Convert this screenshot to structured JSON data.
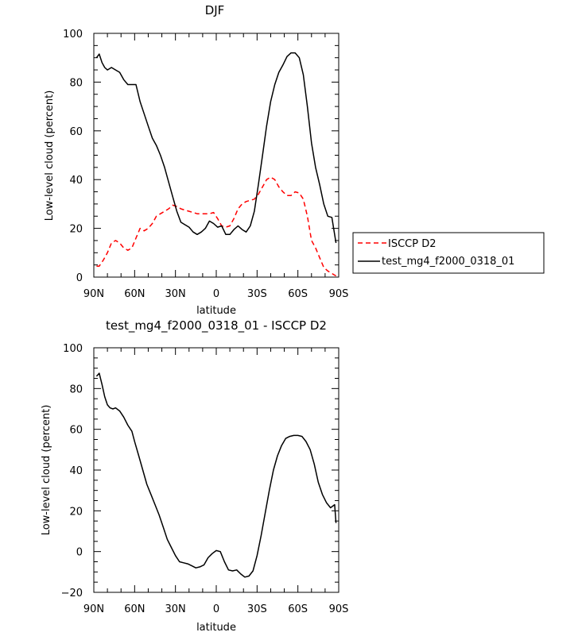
{
  "chart_data": [
    {
      "type": "line",
      "title": "DJF",
      "xlabel": "latitude",
      "ylabel": "Low-level cloud (percent)",
      "xlim": [
        90,
        -90
      ],
      "ylim": [
        0,
        100
      ],
      "xticks": [
        90,
        60,
        30,
        0,
        -30,
        -60,
        -90
      ],
      "xtick_labels": [
        "90N",
        "60N",
        "30N",
        "0",
        "30S",
        "60S",
        "90S"
      ],
      "yticks": [
        0,
        20,
        40,
        60,
        80,
        100
      ],
      "ytick_labels": [
        "0",
        "20",
        "40",
        "60",
        "80",
        "100"
      ],
      "grid": false,
      "legend": "right",
      "series": [
        {
          "name": "ISCCP D2",
          "color": "#ff0000",
          "dash": "dashed",
          "x": [
            88,
            86,
            83,
            80,
            77,
            74,
            71,
            68,
            65,
            62,
            59,
            56,
            53,
            50,
            47,
            44,
            41,
            38,
            35,
            32,
            29,
            26,
            23,
            20,
            17,
            14,
            11,
            8,
            5,
            2,
            -1,
            -4,
            -7,
            -10,
            -13,
            -16,
            -19,
            -22,
            -25,
            -28,
            -31,
            -34,
            -37,
            -40,
            -43,
            -46,
            -49,
            -52,
            -55,
            -58,
            -61,
            -64,
            -67,
            -70,
            -73,
            -76,
            -79,
            -82,
            -85,
            -88
          ],
          "y": [
            4.5,
            4.5,
            7,
            10,
            14,
            15,
            14,
            12,
            11,
            12,
            16,
            20,
            19,
            20,
            22,
            25,
            26,
            27,
            28,
            29.5,
            29,
            28,
            27.5,
            27,
            26.5,
            26,
            26,
            26,
            26,
            26.5,
            24,
            21,
            20.5,
            21,
            24,
            28,
            30,
            31,
            31.5,
            32,
            34,
            37,
            40,
            41,
            40,
            37,
            35,
            33.5,
            33.5,
            35,
            34.5,
            32,
            25,
            15,
            12,
            8,
            4,
            2.5,
            1.5,
            0.5
          ]
        },
        {
          "name": "test_mg4_f2000_0318_01",
          "color": "#000000",
          "dash": "solid",
          "x": [
            88,
            86,
            84,
            82,
            80,
            77,
            74,
            71,
            68,
            65,
            62,
            59,
            56,
            53,
            50,
            47,
            44,
            41,
            38,
            35,
            32,
            29,
            26,
            23,
            20,
            17,
            14,
            11,
            8,
            5,
            2,
            -1,
            -4,
            -7,
            -10,
            -13,
            -16,
            -19,
            -22,
            -25,
            -28,
            -31,
            -34,
            -37,
            -40,
            -43,
            -46,
            -49,
            -52,
            -55,
            -58,
            -61,
            -64,
            -67,
            -70,
            -73,
            -76,
            -79,
            -82,
            -85,
            -88
          ],
          "y": [
            90,
            91.5,
            88,
            86,
            85,
            86,
            85,
            84,
            81,
            79,
            79,
            79,
            72,
            67,
            62,
            57,
            54,
            50,
            45,
            39,
            33,
            27,
            22.5,
            21.5,
            20.5,
            18.5,
            17.5,
            18.5,
            20,
            23,
            22,
            20.5,
            21,
            17.5,
            17.5,
            19.5,
            21,
            19.5,
            18.5,
            21,
            27,
            38,
            50,
            62,
            72,
            79,
            84,
            87,
            90.5,
            92,
            92,
            90,
            83,
            70,
            55,
            45,
            38,
            30,
            25,
            24.5,
            14
          ]
        }
      ]
    },
    {
      "type": "line",
      "title": "test_mg4_f2000_0318_01 - ISCCP D2",
      "xlabel": "latitude",
      "ylabel": "Low-level cloud (percent)",
      "xlim": [
        90,
        -90
      ],
      "ylim": [
        -20,
        100
      ],
      "xticks": [
        90,
        60,
        30,
        0,
        -30,
        -60,
        -90
      ],
      "xtick_labels": [
        "90N",
        "60N",
        "30N",
        "0",
        "30S",
        "60S",
        "90S"
      ],
      "yticks": [
        -20,
        0,
        20,
        40,
        60,
        80,
        100
      ],
      "ytick_labels": [
        "-20",
        "0",
        "20",
        "40",
        "60",
        "80",
        "100"
      ],
      "grid": false,
      "series": [
        {
          "color": "#000000",
          "dash": "solid",
          "x": [
            88,
            86,
            84,
            82,
            80,
            78,
            76,
            74,
            71,
            68,
            65,
            62,
            60,
            57,
            54,
            51,
            48,
            45,
            42,
            39,
            36,
            33,
            30,
            27,
            24,
            21,
            18,
            15,
            12,
            9,
            6,
            3,
            0,
            -3,
            -6,
            -9,
            -12,
            -15,
            -18,
            -21,
            -24,
            -27,
            -30,
            -33,
            -36,
            -39,
            -42,
            -45,
            -48,
            -51,
            -54,
            -57,
            -60,
            -63,
            -66,
            -69,
            -72,
            -75,
            -78,
            -81,
            -84,
            -87,
            -88
          ],
          "y": [
            86,
            87.5,
            82,
            76,
            72,
            70.5,
            70,
            70.5,
            69,
            66,
            62,
            59,
            54,
            47,
            40,
            33,
            28,
            23,
            18,
            12,
            6,
            2,
            -2,
            -5,
            -5.5,
            -6,
            -7,
            -8,
            -7.5,
            -6.5,
            -3,
            -1,
            0.5,
            0,
            -5,
            -9,
            -9.5,
            -9,
            -11,
            -12.5,
            -12,
            -9.5,
            -2,
            8,
            19,
            30,
            40,
            47,
            52,
            55.5,
            56.5,
            57,
            57,
            56.5,
            54,
            50,
            43,
            34,
            28,
            24,
            21.5,
            23,
            14
          ]
        }
      ]
    }
  ]
}
